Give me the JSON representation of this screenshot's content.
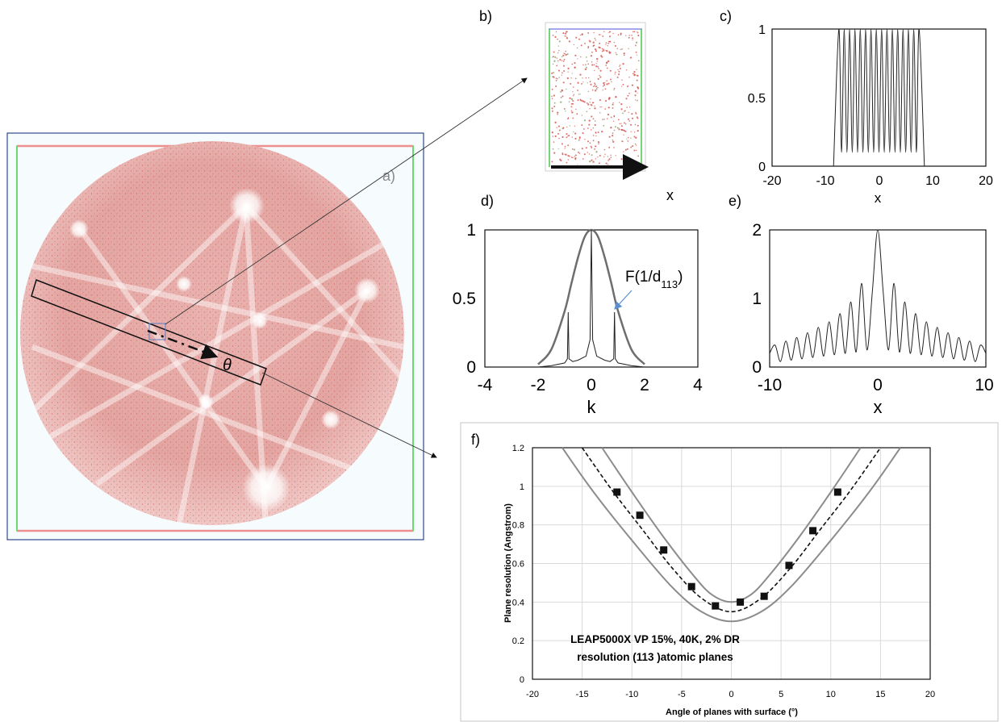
{
  "panel_labels": {
    "a": "a)",
    "b": "b)",
    "c": "c)",
    "d": "d)",
    "e": "e)",
    "f": "f)"
  },
  "panel_a": {
    "theta_symbol": "θ"
  },
  "panel_b": {
    "x_label": "x"
  },
  "annotation_d": {
    "prefix": "F(1/d",
    "subscript": "113",
    "suffix": ")"
  },
  "chart_data": [
    {
      "id": "c",
      "type": "line",
      "xlabel": "x",
      "ylabel": "",
      "xlim": [
        -20,
        20
      ],
      "ylim": [
        0,
        1
      ],
      "xticks": [
        "-20",
        "-10",
        "0",
        "10",
        "20"
      ],
      "yticks": [
        "0",
        "0.5",
        "1"
      ],
      "series": [
        {
          "x": [
            -8.5,
            -7.5,
            -7.0,
            -6.5,
            -6.0,
            -5.5,
            -5.0,
            -4.5,
            -4.0,
            -3.5,
            -3.0,
            -2.5,
            -2.0,
            -1.5,
            -1.0,
            -0.5,
            0,
            0.5,
            1.0,
            1.5,
            2.0,
            2.5,
            3.0,
            3.5,
            4.0,
            4.5,
            5.0,
            5.5,
            6.0,
            6.5,
            7.0,
            7.5,
            8.5
          ],
          "y": [
            0,
            1,
            0.1,
            1,
            0.1,
            1,
            0.1,
            1,
            0.1,
            1,
            0.1,
            1,
            0.1,
            1,
            0.1,
            1,
            0.1,
            1,
            0.1,
            1,
            0.1,
            1,
            0.1,
            1,
            0.1,
            1,
            0.1,
            1,
            0.1,
            1,
            0.1,
            1,
            0
          ]
        }
      ]
    },
    {
      "id": "d",
      "type": "line",
      "xlabel": "k",
      "ylabel": "",
      "xlim": [
        -4,
        4
      ],
      "ylim": [
        0,
        1
      ],
      "xticks": [
        "-4",
        "-2",
        "0",
        "2",
        "4"
      ],
      "yticks": [
        "0",
        "0.5",
        "1"
      ],
      "series": [
        {
          "x": [
            -2.0,
            -1.5,
            -1.0,
            -0.75,
            -0.5,
            -0.25,
            0,
            0.25,
            0.5,
            0.75,
            1.0,
            1.5,
            2.0
          ],
          "y": [
            0.02,
            0.13,
            0.41,
            0.61,
            0.8,
            0.95,
            1.0,
            0.95,
            0.8,
            0.61,
            0.41,
            0.13,
            0.02
          ]
        },
        {
          "x": [
            -2.0,
            -1.5,
            -1.0,
            -0.9,
            -0.87,
            -0.84,
            -0.7,
            -0.5,
            -0.2,
            -0.05,
            0,
            0.05,
            0.2,
            0.5,
            0.7,
            0.84,
            0.87,
            0.9,
            1.0,
            1.5,
            2.0
          ],
          "y": [
            0,
            0.01,
            0.03,
            0.06,
            0.4,
            0.06,
            0.04,
            0.05,
            0.08,
            0.2,
            1.0,
            0.2,
            0.08,
            0.05,
            0.04,
            0.06,
            0.4,
            0.06,
            0.03,
            0.01,
            0
          ]
        }
      ]
    },
    {
      "id": "e",
      "type": "line",
      "xlabel": "x",
      "ylabel": "",
      "xlim": [
        -10,
        10
      ],
      "ylim": [
        0,
        2
      ],
      "xticks": [
        "-10",
        "0",
        "10"
      ],
      "yticks": [
        "0",
        "1",
        "2"
      ],
      "series": [
        {
          "x": [
            -10,
            -9.5,
            -9.0,
            -8.5,
            -8.0,
            -7.5,
            -7.0,
            -6.5,
            -6.0,
            -5.5,
            -5.0,
            -4.5,
            -4.0,
            -3.5,
            -3.0,
            -2.5,
            -2.0,
            -1.5,
            -1.0,
            -0.5,
            0,
            0.5,
            1.0,
            1.5,
            2.0,
            2.5,
            3.0,
            3.5,
            4.0,
            4.5,
            5.0,
            5.5,
            6.0,
            6.5,
            7.0,
            7.5,
            8.0,
            8.5,
            9.0,
            9.5,
            10
          ],
          "y": [
            0.2,
            0.32,
            0.08,
            0.38,
            0.1,
            0.43,
            0.12,
            0.5,
            0.14,
            0.58,
            0.16,
            0.66,
            0.18,
            0.78,
            0.2,
            0.95,
            0.22,
            1.22,
            0.25,
            1.1,
            2.0,
            1.1,
            0.25,
            1.22,
            0.22,
            0.95,
            0.2,
            0.78,
            0.18,
            0.66,
            0.16,
            0.58,
            0.14,
            0.5,
            0.12,
            0.43,
            0.1,
            0.38,
            0.08,
            0.32,
            0.2
          ]
        }
      ]
    },
    {
      "id": "f",
      "type": "scatter",
      "xlabel": "Angle of planes with surface (°)",
      "ylabel": "Plane resolution (Angstrom)",
      "xlim": [
        -20,
        20
      ],
      "ylim": [
        0,
        1.2
      ],
      "xticks": [
        "-20",
        "-15",
        "-10",
        "-5",
        "0",
        "5",
        "10",
        "15",
        "20"
      ],
      "yticks": [
        "0",
        "0.2",
        "0.4",
        "0.6",
        "0.8",
        "1",
        "1.2"
      ],
      "grid": true,
      "annotation": [
        "LEAP5000X VP 15%, 40K, 2% DR",
        "resolution (113 )atomic planes"
      ],
      "points": {
        "x": [
          -11.5,
          -9.2,
          -6.8,
          -4.0,
          -1.6,
          0.9,
          3.3,
          5.8,
          8.2,
          10.7
        ],
        "y": [
          0.97,
          0.85,
          0.67,
          0.48,
          0.38,
          0.4,
          0.43,
          0.59,
          0.77,
          0.97
        ]
      },
      "curves": [
        {
          "style": "solid-gray",
          "x": [
            -17,
            -14,
            -10,
            -6,
            -3,
            0,
            3,
            6,
            10,
            14,
            17
          ],
          "y": [
            1.2,
            0.98,
            0.72,
            0.48,
            0.35,
            0.3,
            0.35,
            0.48,
            0.72,
            0.98,
            1.2
          ]
        },
        {
          "style": "solid-gray",
          "x": [
            -13,
            -10,
            -7,
            -4,
            -2,
            0,
            2,
            4,
            7,
            10,
            13
          ],
          "y": [
            1.2,
            0.97,
            0.75,
            0.55,
            0.44,
            0.4,
            0.44,
            0.55,
            0.75,
            0.97,
            1.2
          ]
        },
        {
          "style": "dashed-black",
          "x": [
            -15,
            -12,
            -9,
            -6,
            -3,
            0,
            3,
            6,
            9,
            12,
            15
          ],
          "y": [
            1.2,
            0.98,
            0.78,
            0.58,
            0.42,
            0.35,
            0.42,
            0.58,
            0.78,
            0.98,
            1.2
          ]
        }
      ]
    }
  ]
}
